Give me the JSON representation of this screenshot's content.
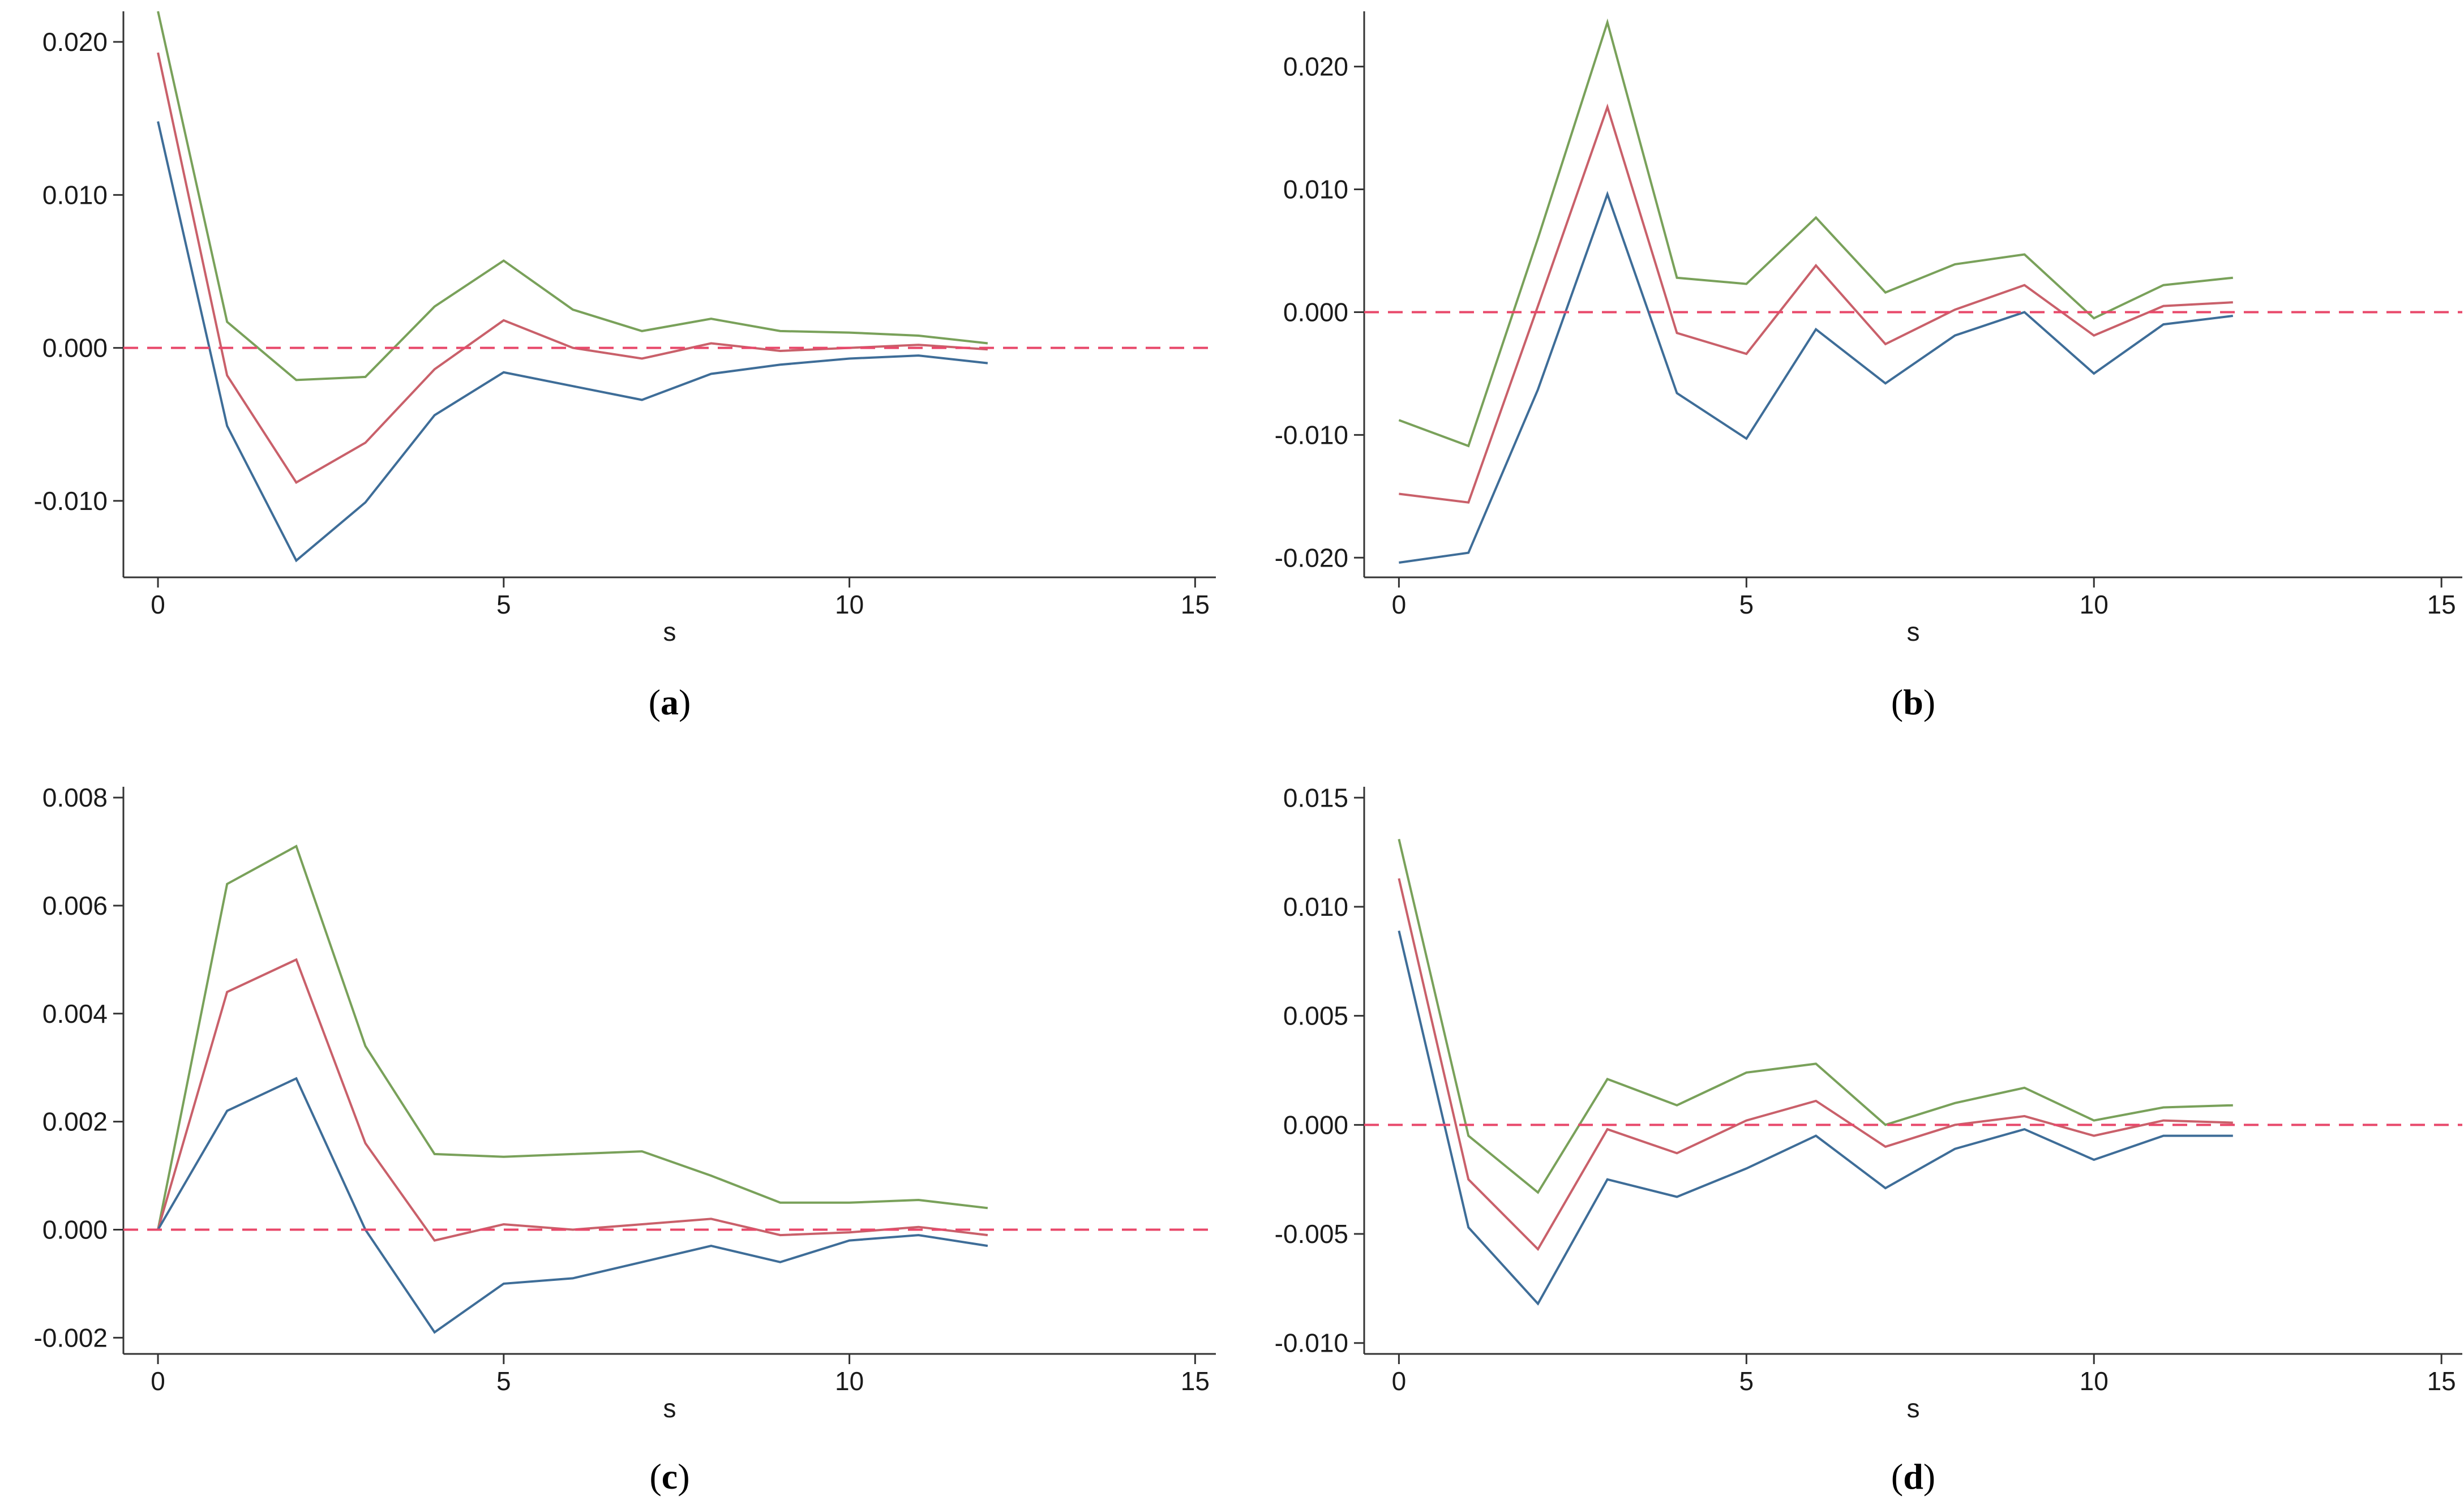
{
  "figure": {
    "colors": {
      "upper": "#79a15a",
      "estimate": "#c9606a",
      "lower": "#3e6d98",
      "reference": "#e8486a",
      "axis": "#333333",
      "text": "#1a1a1a"
    }
  },
  "chart_data": [
    {
      "type": "line",
      "caption": "(a)",
      "caption_letter": "a",
      "title": "",
      "xlabel": "s",
      "ylabel": "",
      "xlim": [
        -0.5,
        15.3
      ],
      "ylim": [
        -0.015,
        0.022
      ],
      "x_ticks": [
        0,
        5,
        10,
        15
      ],
      "x_tick_labels": [
        "0",
        "5",
        "10",
        "15"
      ],
      "y_ticks": [
        -0.01,
        0.0,
        0.01,
        0.02
      ],
      "y_tick_labels": [
        "-0.010",
        "0.000",
        "0.010",
        "0.020"
      ],
      "reference_line": {
        "y": 0.0,
        "style": "dashed"
      },
      "x": [
        0,
        1,
        2,
        3,
        4,
        5,
        6,
        7,
        8,
        9,
        10,
        11,
        12
      ],
      "series": [
        {
          "name": "upper",
          "values": [
            0.022,
            0.0017,
            -0.0021,
            -0.0019,
            0.0027,
            0.0057,
            0.0025,
            0.0011,
            0.0019,
            0.0011,
            0.001,
            0.0008,
            0.0003
          ]
        },
        {
          "name": "estimate",
          "values": [
            0.0193,
            -0.0018,
            -0.0088,
            -0.0062,
            -0.0014,
            0.0018,
            0.0,
            -0.0007,
            0.0003,
            -0.0002,
            0.0,
            0.0002,
            -0.0001
          ]
        },
        {
          "name": "lower",
          "values": [
            0.0148,
            -0.0051,
            -0.0139,
            -0.0101,
            -0.0044,
            -0.0016,
            -0.0025,
            -0.0034,
            -0.0017,
            -0.0011,
            -0.0007,
            -0.0005,
            -0.001
          ]
        }
      ]
    },
    {
      "type": "line",
      "caption": "(b)",
      "caption_letter": "b",
      "title": "",
      "xlabel": "s",
      "ylabel": "",
      "xlim": [
        -0.5,
        15.3
      ],
      "ylim": [
        -0.0216,
        0.0245
      ],
      "x_ticks": [
        0,
        5,
        10,
        15
      ],
      "x_tick_labels": [
        "0",
        "5",
        "10",
        "15"
      ],
      "y_ticks": [
        -0.02,
        -0.01,
        0.0,
        0.01,
        0.02
      ],
      "y_tick_labels": [
        "-0.020",
        "-0.010",
        "0.000",
        "0.010",
        "0.020"
      ],
      "reference_line": {
        "y": 0.0,
        "style": "dashed"
      },
      "x": [
        0,
        1,
        2,
        3,
        4,
        5,
        6,
        7,
        8,
        9,
        10,
        11,
        12
      ],
      "series": [
        {
          "name": "upper",
          "values": [
            -0.0088,
            -0.0109,
            0.006,
            0.0236,
            0.0028,
            0.0023,
            0.0077,
            0.0016,
            0.0039,
            0.0047,
            -0.0005,
            0.0022,
            0.0028
          ]
        },
        {
          "name": "estimate",
          "values": [
            -0.0148,
            -0.0155,
            0.0005,
            0.0167,
            -0.0017,
            -0.0034,
            0.0038,
            -0.0026,
            0.0002,
            0.0022,
            -0.0019,
            0.0005,
            0.0008
          ]
        },
        {
          "name": "lower",
          "values": [
            -0.0204,
            -0.0196,
            -0.0063,
            0.0096,
            -0.0066,
            -0.0103,
            -0.0014,
            -0.0058,
            -0.0019,
            0.0,
            -0.005,
            -0.001,
            -0.0003
          ]
        }
      ]
    },
    {
      "type": "line",
      "caption": "(c)",
      "caption_letter": "c",
      "title": "",
      "xlabel": "s",
      "ylabel": "",
      "xlim": [
        -0.5,
        15.3
      ],
      "ylim": [
        -0.0023,
        0.0082
      ],
      "x_ticks": [
        0,
        5,
        10,
        15
      ],
      "x_tick_labels": [
        "0",
        "5",
        "10",
        "15"
      ],
      "y_ticks": [
        -0.002,
        0.0,
        0.002,
        0.004,
        0.006,
        0.008
      ],
      "y_tick_labels": [
        "-0.002",
        "0.000",
        "0.002",
        "0.004",
        "0.006",
        "0.008"
      ],
      "reference_line": {
        "y": 0.0,
        "style": "dashed"
      },
      "x": [
        0,
        1,
        2,
        3,
        4,
        5,
        6,
        7,
        8,
        9,
        10,
        11,
        12
      ],
      "series": [
        {
          "name": "upper",
          "values": [
            0.0,
            0.0064,
            0.0071,
            0.0034,
            0.0014,
            0.00135,
            0.0014,
            0.00145,
            0.001,
            0.0005,
            0.0005,
            0.00055,
            0.0004
          ]
        },
        {
          "name": "estimate",
          "values": [
            0.0,
            0.0044,
            0.005,
            0.0016,
            -0.0002,
            0.0001,
            0.0,
            0.0001,
            0.0002,
            -0.0001,
            -5e-05,
            5e-05,
            -0.0001
          ]
        },
        {
          "name": "lower",
          "values": [
            0.0,
            0.0022,
            0.0028,
            0.0,
            -0.0019,
            -0.001,
            -0.0009,
            -0.0006,
            -0.0003,
            -0.0006,
            -0.0002,
            -0.0001,
            -0.0003
          ]
        }
      ]
    },
    {
      "type": "line",
      "caption": "(d)",
      "caption_letter": "d",
      "title": "",
      "xlabel": "s",
      "ylabel": "",
      "xlim": [
        -0.5,
        15.3
      ],
      "ylim": [
        -0.0105,
        0.0155
      ],
      "x_ticks": [
        0,
        5,
        10,
        15
      ],
      "x_tick_labels": [
        "0",
        "5",
        "10",
        "15"
      ],
      "y_ticks": [
        -0.01,
        -0.005,
        0.0,
        0.005,
        0.01,
        0.015
      ],
      "y_tick_labels": [
        "-0.010",
        "-0.005",
        "0.000",
        "0.005",
        "0.010",
        "0.015"
      ],
      "reference_line": {
        "y": 0.0,
        "style": "dashed"
      },
      "x": [
        0,
        1,
        2,
        3,
        4,
        5,
        6,
        7,
        8,
        9,
        10,
        11,
        12
      ],
      "series": [
        {
          "name": "upper",
          "values": [
            0.0131,
            -0.0005,
            -0.0031,
            0.0021,
            0.0009,
            0.0024,
            0.0028,
            0.0,
            0.001,
            0.0017,
            0.0002,
            0.0008,
            0.0009
          ]
        },
        {
          "name": "estimate",
          "values": [
            0.0113,
            -0.0025,
            -0.0057,
            -0.0002,
            -0.0013,
            0.0002,
            0.0011,
            -0.001,
            0.0,
            0.0004,
            -0.0005,
            0.0002,
            0.0001
          ]
        },
        {
          "name": "lower",
          "values": [
            0.0089,
            -0.0047,
            -0.0082,
            -0.0025,
            -0.0033,
            -0.002,
            -0.0005,
            -0.0029,
            -0.0011,
            -0.0002,
            -0.0016,
            -0.0005,
            -0.0005
          ]
        }
      ]
    }
  ]
}
